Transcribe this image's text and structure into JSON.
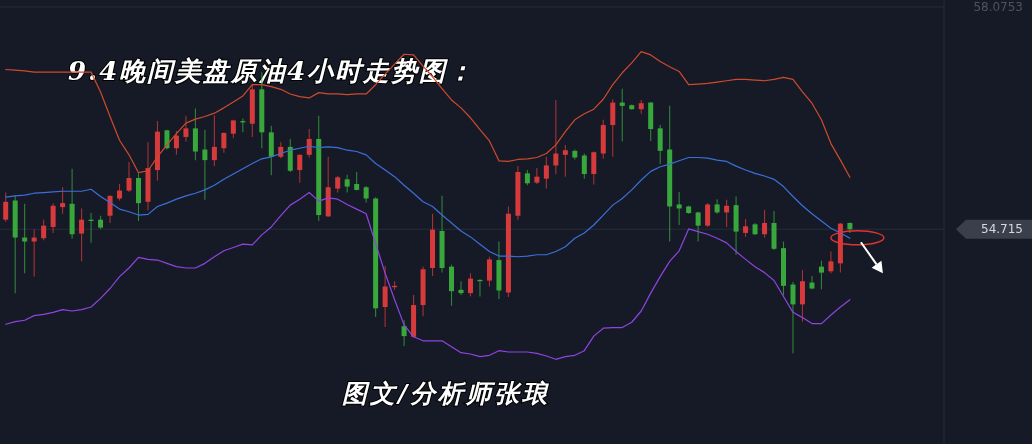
{
  "chart_data": {
    "type": "candlestick",
    "title": "9.4晚间美盘原油4小时走势图：",
    "annotations": [
      "图文/分析师张琅"
    ],
    "categories": [
      null,
      null,
      null,
      null,
      null,
      null,
      null,
      null,
      null,
      null,
      null,
      null,
      null,
      null,
      null,
      null,
      null,
      null,
      null,
      null,
      null,
      null,
      null,
      null,
      null,
      null,
      null,
      null,
      null,
      null,
      null,
      null,
      null,
      null,
      null,
      null,
      null,
      null,
      null,
      null,
      null,
      null,
      null,
      null,
      null,
      null,
      null,
      null,
      null,
      null,
      null,
      null,
      null,
      null,
      null,
      null,
      null,
      null,
      null,
      null,
      null,
      null,
      null,
      null,
      null,
      null,
      null,
      null,
      null,
      null,
      null,
      null,
      null,
      null,
      null,
      null,
      null,
      null,
      null,
      null,
      null,
      null,
      null,
      null,
      null,
      null,
      null,
      null,
      null,
      null
    ],
    "ohlc": [
      [
        54.86,
        55.27,
        54.83,
        55.13
      ],
      [
        55.15,
        55.23,
        53.75,
        54.59
      ],
      [
        54.59,
        55.1,
        54.05,
        54.53
      ],
      [
        54.53,
        54.71,
        54.0,
        54.59
      ],
      [
        54.58,
        54.86,
        54.55,
        54.77
      ],
      [
        54.75,
        55.11,
        54.66,
        55.07
      ],
      [
        55.05,
        55.35,
        54.95,
        55.11
      ],
      [
        55.1,
        55.63,
        54.57,
        54.64
      ],
      [
        54.65,
        55.03,
        54.23,
        54.86
      ],
      [
        54.86,
        54.96,
        54.51,
        54.84
      ],
      [
        54.86,
        54.92,
        54.72,
        54.74
      ],
      [
        54.92,
        55.23,
        54.81,
        55.22
      ],
      [
        55.18,
        55.4,
        55.15,
        55.3
      ],
      [
        55.3,
        55.73,
        55.28,
        55.49
      ],
      [
        55.49,
        55.56,
        54.84,
        55.11
      ],
      [
        55.13,
        56.03,
        55.0,
        55.64
      ],
      [
        55.61,
        56.35,
        55.45,
        56.19
      ],
      [
        56.21,
        56.22,
        55.92,
        55.94
      ],
      [
        55.94,
        56.2,
        55.84,
        56.13
      ],
      [
        56.11,
        56.43,
        56.04,
        56.24
      ],
      [
        56.24,
        56.54,
        55.76,
        55.89
      ],
      [
        55.92,
        56.22,
        55.16,
        55.76
      ],
      [
        55.76,
        56.44,
        55.67,
        55.96
      ],
      [
        55.94,
        56.18,
        55.87,
        56.17
      ],
      [
        56.16,
        56.37,
        56.09,
        56.36
      ],
      [
        56.35,
        56.39,
        56.18,
        56.33
      ],
      [
        56.31,
        56.9,
        56.11,
        56.83
      ],
      [
        56.83,
        57.09,
        55.94,
        56.18
      ],
      [
        56.18,
        56.28,
        55.53,
        55.81
      ],
      [
        55.81,
        56.03,
        55.79,
        55.96
      ],
      [
        55.96,
        56.08,
        55.58,
        55.6
      ],
      [
        55.61,
        55.85,
        55.42,
        55.84
      ],
      [
        55.84,
        56.23,
        55.8,
        56.08
      ],
      [
        56.08,
        56.43,
        54.84,
        54.93
      ],
      [
        54.91,
        55.81,
        54.9,
        55.35
      ],
      [
        55.33,
        55.52,
        55.27,
        55.5
      ],
      [
        55.47,
        55.54,
        55.27,
        55.36
      ],
      [
        55.4,
        55.58,
        55.3,
        55.31
      ],
      [
        55.35,
        55.37,
        55.12,
        55.18
      ],
      [
        55.18,
        55.2,
        53.39,
        53.52
      ],
      [
        53.54,
        54.16,
        53.24,
        53.85
      ],
      [
        53.84,
        53.93,
        53.8,
        53.86
      ],
      [
        53.25,
        53.34,
        52.95,
        53.1
      ],
      [
        53.09,
        53.72,
        53.08,
        53.57
      ],
      [
        53.57,
        54.15,
        53.4,
        54.11
      ],
      [
        54.13,
        54.95,
        54.01,
        54.71
      ],
      [
        54.69,
        55.22,
        54.06,
        54.13
      ],
      [
        54.15,
        54.18,
        53.56,
        53.78
      ],
      [
        53.8,
        53.93,
        53.72,
        53.75
      ],
      [
        53.75,
        54.05,
        53.7,
        53.97
      ],
      [
        53.95,
        53.96,
        53.7,
        53.93
      ],
      [
        53.94,
        54.3,
        53.85,
        54.26
      ],
      [
        54.25,
        54.53,
        53.66,
        53.79
      ],
      [
        53.76,
        55.06,
        53.69,
        54.95
      ],
      [
        54.92,
        55.67,
        54.86,
        55.58
      ],
      [
        55.56,
        55.61,
        55.38,
        55.41
      ],
      [
        55.42,
        55.64,
        55.4,
        55.51
      ],
      [
        55.48,
        55.81,
        55.33,
        55.68
      ],
      [
        55.68,
        56.67,
        55.55,
        55.86
      ],
      [
        55.84,
        55.99,
        55.51,
        55.91
      ],
      [
        55.9,
        55.92,
        55.77,
        55.8
      ],
      [
        55.83,
        55.86,
        55.48,
        55.55
      ],
      [
        55.55,
        55.89,
        55.39,
        55.88
      ],
      [
        55.86,
        56.37,
        55.78,
        56.29
      ],
      [
        56.29,
        56.68,
        55.81,
        56.63
      ],
      [
        56.63,
        56.84,
        56.04,
        56.58
      ],
      [
        56.59,
        56.6,
        56.52,
        56.53
      ],
      [
        56.53,
        56.67,
        56.46,
        56.62
      ],
      [
        56.63,
        56.64,
        56.05,
        56.23
      ],
      [
        56.24,
        56.29,
        55.7,
        55.9
      ],
      [
        55.92,
        56.58,
        54.53,
        55.06
      ],
      [
        55.09,
        55.28,
        54.78,
        55.03
      ],
      [
        55.06,
        55.07,
        54.95,
        54.96
      ],
      [
        54.97,
        54.98,
        54.53,
        54.77
      ],
      [
        54.77,
        55.11,
        54.75,
        55.09
      ],
      [
        55.09,
        55.17,
        54.95,
        54.97
      ],
      [
        54.97,
        55.16,
        54.75,
        55.07
      ],
      [
        55.08,
        55.21,
        54.33,
        54.68
      ],
      [
        54.66,
        54.87,
        54.6,
        54.76
      ],
      [
        54.79,
        54.81,
        54.63,
        54.64
      ],
      [
        54.64,
        55.01,
        54.59,
        54.81
      ],
      [
        54.81,
        54.99,
        54.4,
        54.42
      ],
      [
        54.43,
        54.53,
        53.72,
        53.86
      ],
      [
        53.88,
        53.92,
        52.84,
        53.58
      ],
      [
        53.58,
        54.1,
        53.32,
        53.93
      ],
      [
        53.91,
        54.01,
        53.81,
        53.82
      ],
      [
        54.15,
        54.24,
        53.81,
        54.06
      ],
      [
        54.08,
        54.38,
        54.05,
        54.23
      ],
      [
        54.2,
        54.81,
        54.06,
        54.8
      ],
      [
        54.81,
        54.82,
        54.66,
        54.715
      ]
    ],
    "colors": [
      "#d73a3a",
      "#38a83c",
      "#38a83c",
      "#d73a3a",
      "#d73a3a",
      "#d73a3a",
      "#d73a3a",
      "#38a83c",
      "#d73a3a",
      "#38a83c",
      "#38a83c",
      "#d73a3a",
      "#d73a3a",
      "#d73a3a",
      "#38a83c",
      "#d73a3a",
      "#d73a3a",
      "#38a83c",
      "#d73a3a",
      "#d73a3a",
      "#38a83c",
      "#38a83c",
      "#d73a3a",
      "#d73a3a",
      "#d73a3a",
      "#38a83c",
      "#d73a3a",
      "#38a83c",
      "#38a83c",
      "#d73a3a",
      "#38a83c",
      "#d73a3a",
      "#d73a3a",
      "#38a83c",
      "#d73a3a",
      "#d73a3a",
      "#38a83c",
      "#38a83c",
      "#38a83c",
      "#38a83c",
      "#d73a3a",
      "#d73a3a",
      "#38a83c",
      "#d73a3a",
      "#d73a3a",
      "#d73a3a",
      "#38a83c",
      "#38a83c",
      "#38a83c",
      "#d73a3a",
      "#38a83c",
      "#d73a3a",
      "#38a83c",
      "#d73a3a",
      "#d73a3a",
      "#38a83c",
      "#d73a3a",
      "#d73a3a",
      "#d73a3a",
      "#d73a3a",
      "#38a83c",
      "#38a83c",
      "#d73a3a",
      "#d73a3a",
      "#d73a3a",
      "#38a83c",
      "#38a83c",
      "#d73a3a",
      "#38a83c",
      "#38a83c",
      "#38a83c",
      "#38a83c",
      "#38a83c",
      "#38a83c",
      "#d73a3a",
      "#38a83c",
      "#d73a3a",
      "#38a83c",
      "#d73a3a",
      "#38a83c",
      "#d73a3a",
      "#38a83c",
      "#38a83c",
      "#38a83c",
      "#d73a3a",
      "#38a83c",
      "#38a83c",
      "#d73a3a",
      "#d73a3a",
      "#38a83c"
    ],
    "series": [
      {
        "type": "line",
        "color": "#cf4a2c",
        "values": [
          57.13,
          57.12,
          57.11,
          57.09,
          57.09,
          57.09,
          57.09,
          57.09,
          57.09,
          57.09,
          56.79,
          56.42,
          56.06,
          55.84,
          55.57,
          55.6,
          55.81,
          55.99,
          56.16,
          56.32,
          56.38,
          56.42,
          56.47,
          56.55,
          56.64,
          56.73,
          56.9,
          56.9,
          56.87,
          56.83,
          56.76,
          56.72,
          56.7,
          56.78,
          56.76,
          56.76,
          56.75,
          56.76,
          56.76,
          56.9,
          57.06,
          57.21,
          57.36,
          57.35,
          57.18,
          57.02,
          56.84,
          56.67,
          56.55,
          56.4,
          56.22,
          56.05,
          55.75,
          55.74,
          55.77,
          55.78,
          55.8,
          55.86,
          55.99,
          56.19,
          56.37,
          56.46,
          56.53,
          56.68,
          56.9,
          57.08,
          57.23,
          57.4,
          57.35,
          57.25,
          57.17,
          57.1,
          56.9,
          56.91,
          56.92,
          56.94,
          56.96,
          56.98,
          56.98,
          56.97,
          56.96,
          56.98,
          57.01,
          56.98,
          56.79,
          56.62,
          56.37,
          56.01,
          55.76,
          55.5
        ]
      },
      {
        "type": "line",
        "color": "#3b6fd9",
        "values": [
          55.2,
          55.22,
          55.23,
          55.26,
          55.27,
          55.28,
          55.29,
          55.29,
          55.29,
          55.32,
          55.21,
          55.12,
          55.02,
          54.98,
          54.93,
          54.94,
          55.06,
          55.11,
          55.17,
          55.22,
          55.26,
          55.31,
          55.38,
          55.47,
          55.55,
          55.63,
          55.71,
          55.78,
          55.81,
          55.86,
          55.91,
          55.94,
          55.97,
          55.95,
          55.96,
          55.95,
          55.91,
          55.89,
          55.84,
          55.71,
          55.61,
          55.51,
          55.38,
          55.26,
          55.13,
          55.06,
          54.93,
          54.81,
          54.69,
          54.6,
          54.49,
          54.38,
          54.31,
          54.31,
          54.3,
          54.31,
          54.33,
          54.33,
          54.38,
          54.45,
          54.58,
          54.66,
          54.78,
          54.93,
          55.08,
          55.18,
          55.31,
          55.46,
          55.59,
          55.66,
          55.7,
          55.75,
          55.8,
          55.8,
          55.79,
          55.76,
          55.74,
          55.67,
          55.61,
          55.56,
          55.52,
          55.47,
          55.36,
          55.21,
          55.07,
          54.95,
          54.84,
          54.73,
          54.66,
          54.58
        ]
      },
      {
        "type": "line",
        "color": "#8e44e0",
        "values": [
          53.28,
          53.32,
          53.34,
          53.41,
          53.43,
          53.46,
          53.5,
          53.48,
          53.5,
          53.54,
          53.67,
          53.82,
          54.0,
          54.13,
          54.29,
          54.26,
          54.25,
          54.2,
          54.15,
          54.13,
          54.13,
          54.2,
          54.3,
          54.39,
          54.44,
          54.49,
          54.48,
          54.63,
          54.75,
          54.92,
          55.08,
          55.17,
          55.27,
          55.14,
          55.19,
          55.17,
          55.09,
          55.02,
          54.95,
          54.5,
          54.05,
          53.65,
          53.27,
          53.09,
          53.03,
          53.03,
          53.03,
          52.94,
          52.85,
          52.83,
          52.79,
          52.81,
          52.88,
          52.86,
          52.86,
          52.86,
          52.84,
          52.8,
          52.75,
          52.79,
          52.81,
          52.88,
          53.1,
          53.22,
          53.23,
          53.23,
          53.31,
          53.48,
          53.75,
          54.0,
          54.23,
          54.39,
          54.72,
          54.68,
          54.64,
          54.58,
          54.51,
          54.38,
          54.26,
          54.15,
          54.06,
          53.94,
          53.7,
          53.46,
          53.38,
          53.29,
          53.29,
          53.42,
          53.54,
          53.65
        ]
      }
    ],
    "ylim": [
      51.47,
      58.18
    ],
    "yticks": [
      58.0753,
      54.715
    ],
    "grid": "y"
  }
}
